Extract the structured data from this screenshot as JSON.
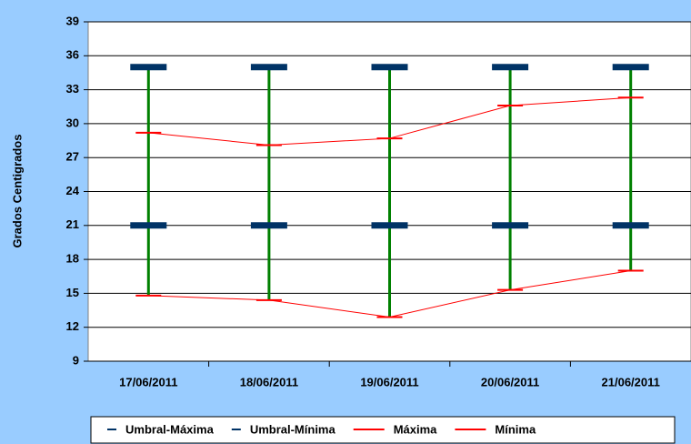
{
  "chart_data": {
    "type": "line",
    "y_axis_label": "Grados Centigrados",
    "categories": [
      "17/06/2011",
      "18/06/2011",
      "19/06/2011",
      "20/06/2011",
      "21/06/2011"
    ],
    "series": [
      {
        "name": "Umbral-Máxima",
        "color": "#003366",
        "line": false,
        "values": [
          35,
          35,
          35,
          35,
          35
        ]
      },
      {
        "name": "Umbral-Mínima",
        "color": "#003366",
        "line": false,
        "values": [
          21,
          21,
          21,
          21,
          21
        ]
      },
      {
        "name": "Máxima",
        "color": "#ff0000",
        "line": true,
        "values": [
          29.2,
          28.1,
          28.7,
          31.6,
          32.3
        ]
      },
      {
        "name": "Mínima",
        "color": "#ff0000",
        "line": true,
        "values": [
          14.8,
          14.4,
          12.9,
          15.3,
          17.0
        ]
      }
    ],
    "high_low_color": "#008000",
    "ylim": [
      9,
      39
    ],
    "yticks": [
      9,
      12,
      15,
      18,
      21,
      24,
      27,
      30,
      33,
      36,
      39
    ],
    "grid": true,
    "legend": "bottom"
  }
}
